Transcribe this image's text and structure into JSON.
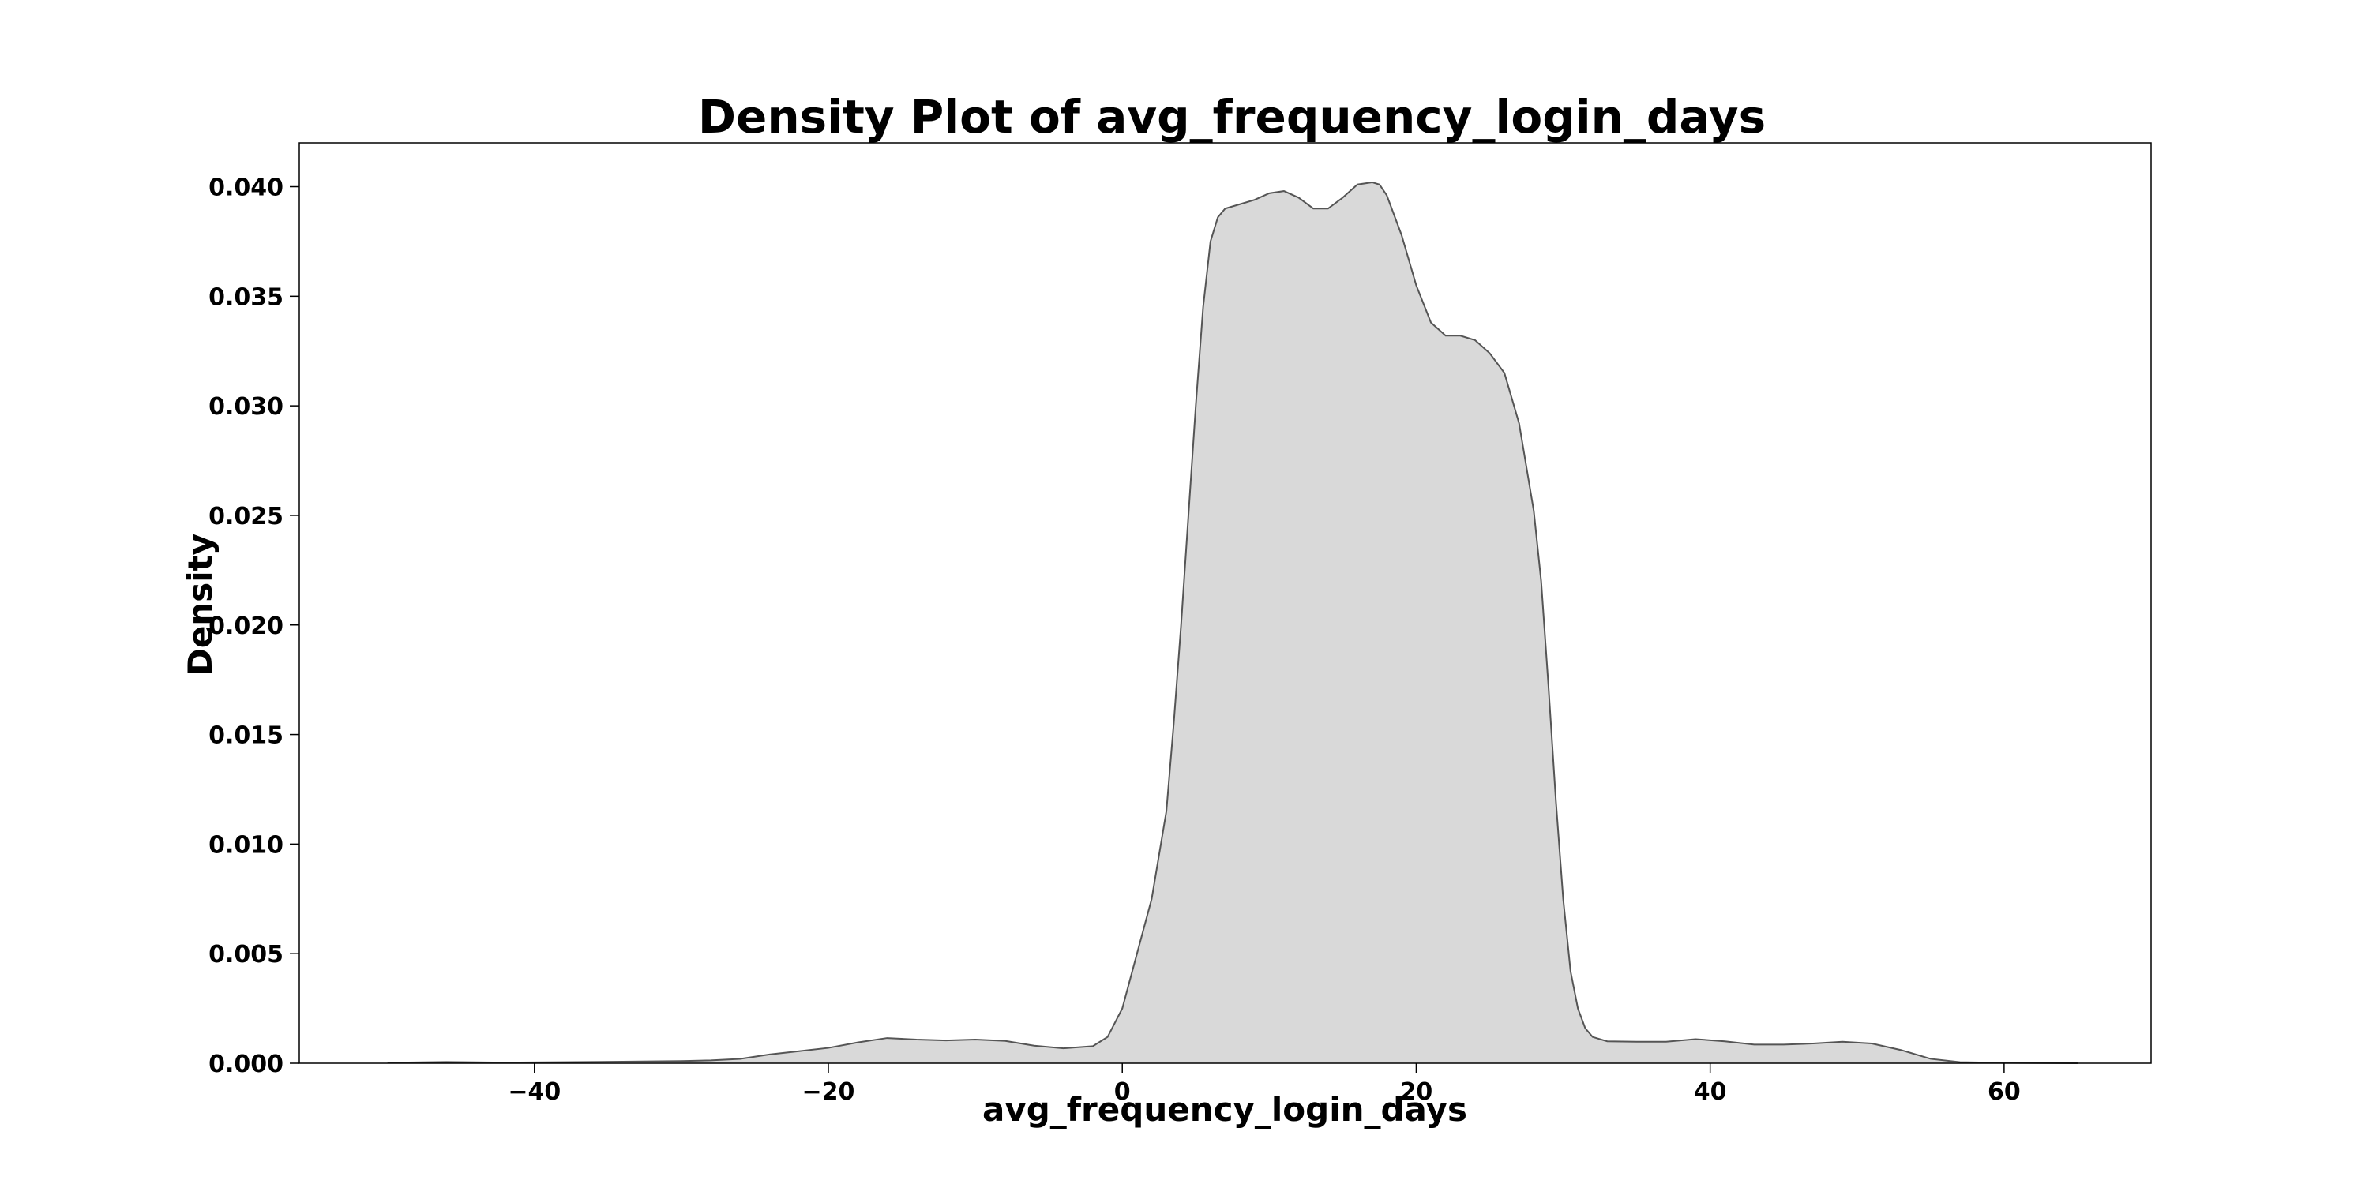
{
  "chart_data": {
    "type": "area",
    "title": "Density Plot of avg_frequency_login_days",
    "xlabel": "avg_frequency_login_days",
    "ylabel": "Density",
    "xlim": [
      -56,
      70
    ],
    "ylim": [
      0,
      0.042
    ],
    "xticks": [
      -40,
      -20,
      0,
      20,
      40,
      60
    ],
    "xtick_labels": [
      "−40",
      "−20",
      "0",
      "20",
      "40",
      "60"
    ],
    "yticks": [
      0.0,
      0.005,
      0.01,
      0.015,
      0.02,
      0.025,
      0.03,
      0.035,
      0.04
    ],
    "ytick_labels": [
      "0.000",
      "0.005",
      "0.010",
      "0.015",
      "0.020",
      "0.025",
      "0.030",
      "0.035",
      "0.040"
    ],
    "grid": false,
    "fill_color": "#d9d9d9",
    "line_color": "#555555",
    "series": [
      {
        "x": [
          -50,
          -46,
          -42,
          -38,
          -34,
          -30,
          -28,
          -26,
          -24,
          -22,
          -20,
          -18,
          -16,
          -14,
          -12,
          -10,
          -8,
          -6,
          -4,
          -2,
          -1,
          0,
          1,
          2,
          3,
          3.5,
          4,
          4.5,
          5,
          5.5,
          6,
          6.5,
          7,
          8,
          9,
          10,
          11,
          12,
          13,
          14,
          15,
          16,
          17,
          17.5,
          18,
          19,
          20,
          21,
          22,
          23,
          24,
          25,
          26,
          27,
          28,
          28.5,
          29,
          29.5,
          30,
          30.5,
          31,
          31.5,
          32,
          33,
          35,
          37,
          39,
          41,
          43,
          45,
          47,
          49,
          51,
          53,
          55,
          57,
          60,
          65
        ],
        "y": [
          2e-05,
          6e-05,
          3e-05,
          5e-05,
          7e-05,
          0.0001,
          0.00013,
          0.0002,
          0.0004,
          0.00055,
          0.0007,
          0.00095,
          0.00115,
          0.00108,
          0.00104,
          0.00108,
          0.00102,
          0.0008,
          0.00068,
          0.00078,
          0.0012,
          0.0025,
          0.005,
          0.0075,
          0.0115,
          0.0155,
          0.02,
          0.025,
          0.03,
          0.0345,
          0.0375,
          0.0386,
          0.039,
          0.0392,
          0.0394,
          0.0397,
          0.0398,
          0.0395,
          0.039,
          0.039,
          0.0395,
          0.0401,
          0.0402,
          0.0401,
          0.0396,
          0.0378,
          0.0355,
          0.0338,
          0.0332,
          0.0332,
          0.033,
          0.0324,
          0.0315,
          0.0292,
          0.0252,
          0.022,
          0.0172,
          0.012,
          0.0075,
          0.0042,
          0.0025,
          0.0016,
          0.0012,
          0.001,
          0.00098,
          0.00098,
          0.0011,
          0.001,
          0.00085,
          0.00085,
          0.0009,
          0.00098,
          0.0009,
          0.0006,
          0.0002,
          5e-05,
          2e-05,
          0.0
        ]
      }
    ]
  }
}
